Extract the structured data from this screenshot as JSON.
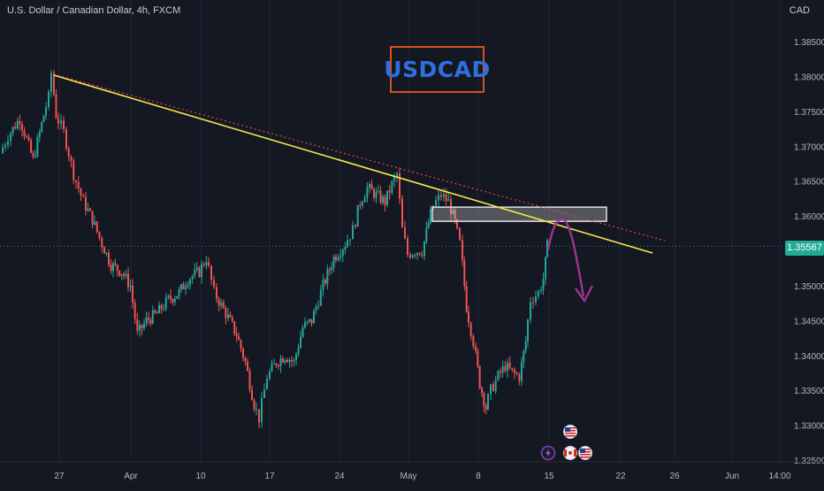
{
  "header": {
    "symbol_title": "U.S. Dollar / Canadian Dollar, 4h, FXCM",
    "currency": "CAD"
  },
  "annotation": {
    "badge_text": "USDCAD"
  },
  "last_price": {
    "label": "1.35567",
    "value": 1.35567,
    "color": "#22ab94"
  },
  "colors": {
    "background": "#141823",
    "up": "#26a69a",
    "down": "#ef5350",
    "trendline": "#f7e84a",
    "dotted_trendline": "#e84545",
    "projection_arrow": "#a3328f",
    "badge_border": "#d3541f",
    "badge_text": "#2f6fe0"
  },
  "events": [
    {
      "name": "us-flag-icon",
      "color": "#d7d7d7"
    },
    {
      "name": "lightning-icon",
      "color": "#8a3fbf"
    },
    {
      "name": "ca-flag-icon",
      "color": "#d7d7d7"
    },
    {
      "name": "us-flag-icon",
      "color": "#d7d7d7"
    }
  ],
  "chart_data": {
    "type": "candlestick",
    "title": "U.S. Dollar / Canadian Dollar, 4h, FXCM",
    "xlabel": "",
    "ylabel": "CAD",
    "ylim": [
      1.325,
      1.39
    ],
    "yticks": [
      "1.38500",
      "1.38000",
      "1.37500",
      "1.37000",
      "1.36500",
      "1.36000",
      "1.35500",
      "1.35000",
      "1.34500",
      "1.34000",
      "1.33500",
      "1.33000",
      "1.32500"
    ],
    "xticks": [
      "27",
      "Apr",
      "10",
      "17",
      "24",
      "May",
      "8",
      "15",
      "22",
      "26",
      "Jun",
      "14:00"
    ],
    "series": [
      {
        "name": "",
        "approx_close_path": [
          {
            "x": "27",
            "y": 1.369
          },
          {
            "x": "27",
            "y": 1.3805
          },
          {
            "x": "Apr",
            "y": 1.343
          },
          {
            "x": "10",
            "y": 1.352
          },
          {
            "x": "17",
            "y": 1.331
          },
          {
            "x": "24",
            "y": 1.354
          },
          {
            "x": "May",
            "y": 1.365
          },
          {
            "x": "May",
            "y": 1.3545
          },
          {
            "x": "May",
            "y": 1.3625
          },
          {
            "x": "8",
            "y": 1.3315
          },
          {
            "x": "15",
            "y": 1.3557
          }
        ]
      }
    ],
    "annotations": {
      "trendline": "from 27 at 1.3805 falling to after 22 at about 1.3547",
      "resistance_zone": [
        1.359,
        1.3605
      ],
      "projection": "arrow up to ~1.3595 then down to ~1.3500"
    }
  }
}
